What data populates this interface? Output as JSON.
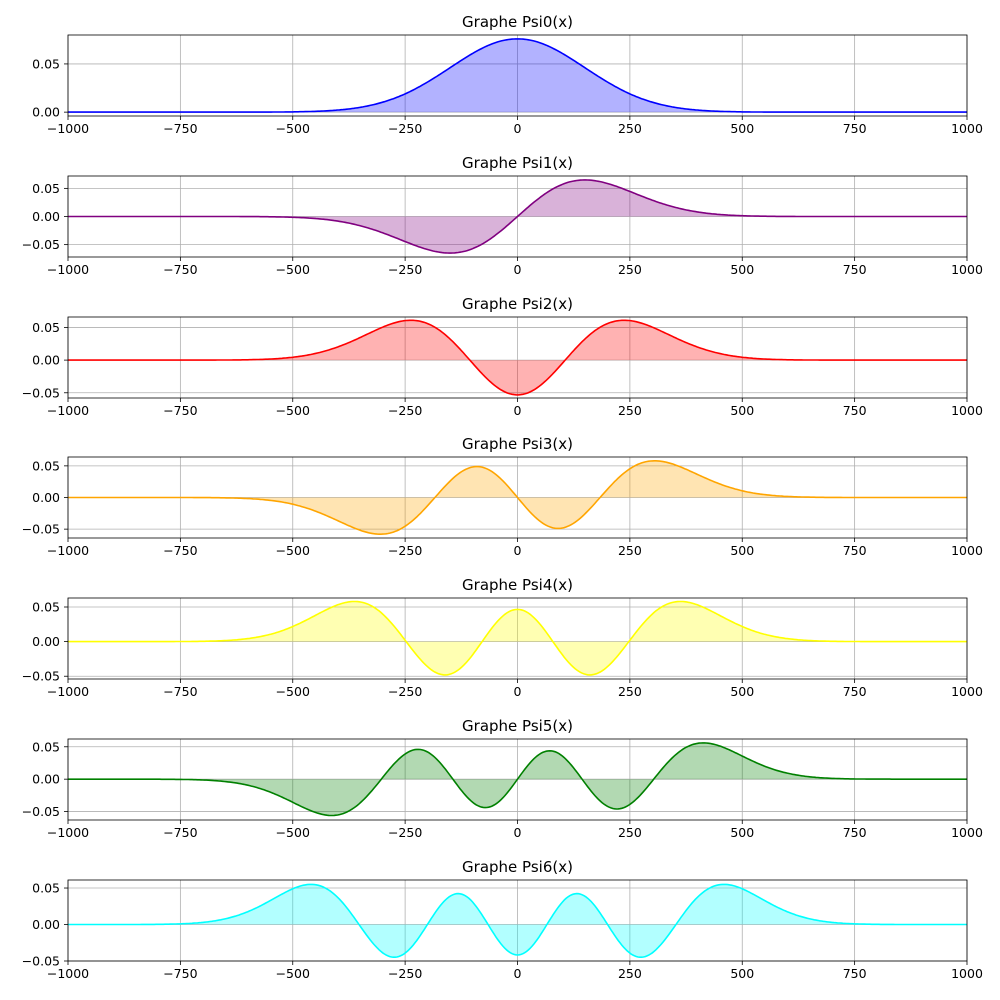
{
  "chart_data": [
    {
      "type": "area",
      "title": "Graphe Psi0(x)",
      "n": 0,
      "color": "#0000ff",
      "xlim": [
        -1000,
        1000
      ],
      "ylim": [
        -0.004,
        0.08
      ],
      "x_ticks": [
        -1000,
        -750,
        -500,
        -250,
        0,
        250,
        500,
        750,
        1000
      ],
      "x_tick_labels": [
        "−1000",
        "−750",
        "−500",
        "−250",
        "0",
        "250",
        "500",
        "750",
        "1000"
      ],
      "y_ticks": [
        0.0,
        0.05
      ],
      "y_tick_labels": [
        "0.00",
        "0.05"
      ],
      "grid": true,
      "peak_value": 0.076
    },
    {
      "type": "area",
      "title": "Graphe Psi1(x)",
      "n": 1,
      "color": "#800080",
      "xlim": [
        -1000,
        1000
      ],
      "ylim": [
        -0.072,
        0.072
      ],
      "x_ticks": [
        -1000,
        -750,
        -500,
        -250,
        0,
        250,
        500,
        750,
        1000
      ],
      "x_tick_labels": [
        "−1000",
        "−750",
        "−500",
        "−250",
        "0",
        "250",
        "500",
        "750",
        "1000"
      ],
      "y_ticks": [
        -0.05,
        0.0,
        0.05
      ],
      "y_tick_labels": [
        "−0.05",
        "0.00",
        "0.05"
      ],
      "grid": true,
      "peak_value": 0.065
    },
    {
      "type": "area",
      "title": "Graphe Psi2(x)",
      "n": 2,
      "color": "#ff0000",
      "xlim": [
        -1000,
        1000
      ],
      "ylim": [
        -0.058,
        0.066
      ],
      "x_ticks": [
        -1000,
        -750,
        -500,
        -250,
        0,
        250,
        500,
        750,
        1000
      ],
      "x_tick_labels": [
        "−1000",
        "−750",
        "−500",
        "−250",
        "0",
        "250",
        "500",
        "750",
        "1000"
      ],
      "y_ticks": [
        -0.05,
        0.0,
        0.05
      ],
      "y_tick_labels": [
        "−0.05",
        "0.00",
        "0.05"
      ],
      "grid": true,
      "peak_value": 0.061
    },
    {
      "type": "area",
      "title": "Graphe Psi3(x)",
      "n": 3,
      "color": "#ffa500",
      "xlim": [
        -1000,
        1000
      ],
      "ylim": [
        -0.064,
        0.064
      ],
      "x_ticks": [
        -1000,
        -750,
        -500,
        -250,
        0,
        250,
        500,
        750,
        1000
      ],
      "x_tick_labels": [
        "−1000",
        "−750",
        "−500",
        "−250",
        "0",
        "250",
        "500",
        "750",
        "1000"
      ],
      "y_ticks": [
        -0.05,
        0.0,
        0.05
      ],
      "y_tick_labels": [
        "−0.05",
        "0.00",
        "0.05"
      ],
      "grid": true,
      "peak_value": 0.058
    },
    {
      "type": "area",
      "title": "Graphe Psi4(x)",
      "n": 4,
      "color": "#ffff00",
      "xlim": [
        -1000,
        1000
      ],
      "ylim": [
        -0.054,
        0.063
      ],
      "x_ticks": [
        -1000,
        -750,
        -500,
        -250,
        0,
        250,
        500,
        750,
        1000
      ],
      "x_tick_labels": [
        "−1000",
        "−750",
        "−500",
        "−250",
        "0",
        "250",
        "500",
        "750",
        "1000"
      ],
      "y_ticks": [
        -0.05,
        0.0,
        0.05
      ],
      "y_tick_labels": [
        "−0.05",
        "0.00",
        "0.05"
      ],
      "grid": true,
      "peak_value": 0.058
    },
    {
      "type": "area",
      "title": "Graphe Psi5(x)",
      "n": 5,
      "color": "#008000",
      "xlim": [
        -1000,
        1000
      ],
      "ylim": [
        -0.063,
        0.062
      ],
      "x_ticks": [
        -1000,
        -750,
        -500,
        -250,
        0,
        250,
        500,
        750,
        1000
      ],
      "x_tick_labels": [
        "−1000",
        "−750",
        "−500",
        "−250",
        "0",
        "250",
        "500",
        "750",
        "1000"
      ],
      "y_ticks": [
        -0.05,
        0.0,
        0.05
      ],
      "y_tick_labels": [
        "−0.05",
        "0.00",
        "0.05"
      ],
      "grid": true,
      "peak_value": 0.056
    },
    {
      "type": "area",
      "title": "Graphe Psi6(x)",
      "n": 6,
      "color": "#00ffff",
      "xlim": [
        -1000,
        1000
      ],
      "ylim": [
        -0.05,
        0.061
      ],
      "x_ticks": [
        -1000,
        -750,
        -500,
        -250,
        0,
        250,
        500,
        750,
        1000
      ],
      "x_tick_labels": [
        "−1000",
        "−750",
        "−500",
        "−250",
        "0",
        "250",
        "500",
        "750",
        "1000"
      ],
      "y_ticks": [
        -0.05,
        0.0,
        0.05
      ],
      "y_tick_labels": [
        "−0.05",
        "0.00",
        "0.05"
      ],
      "grid": true,
      "peak_value": 0.055
    }
  ]
}
